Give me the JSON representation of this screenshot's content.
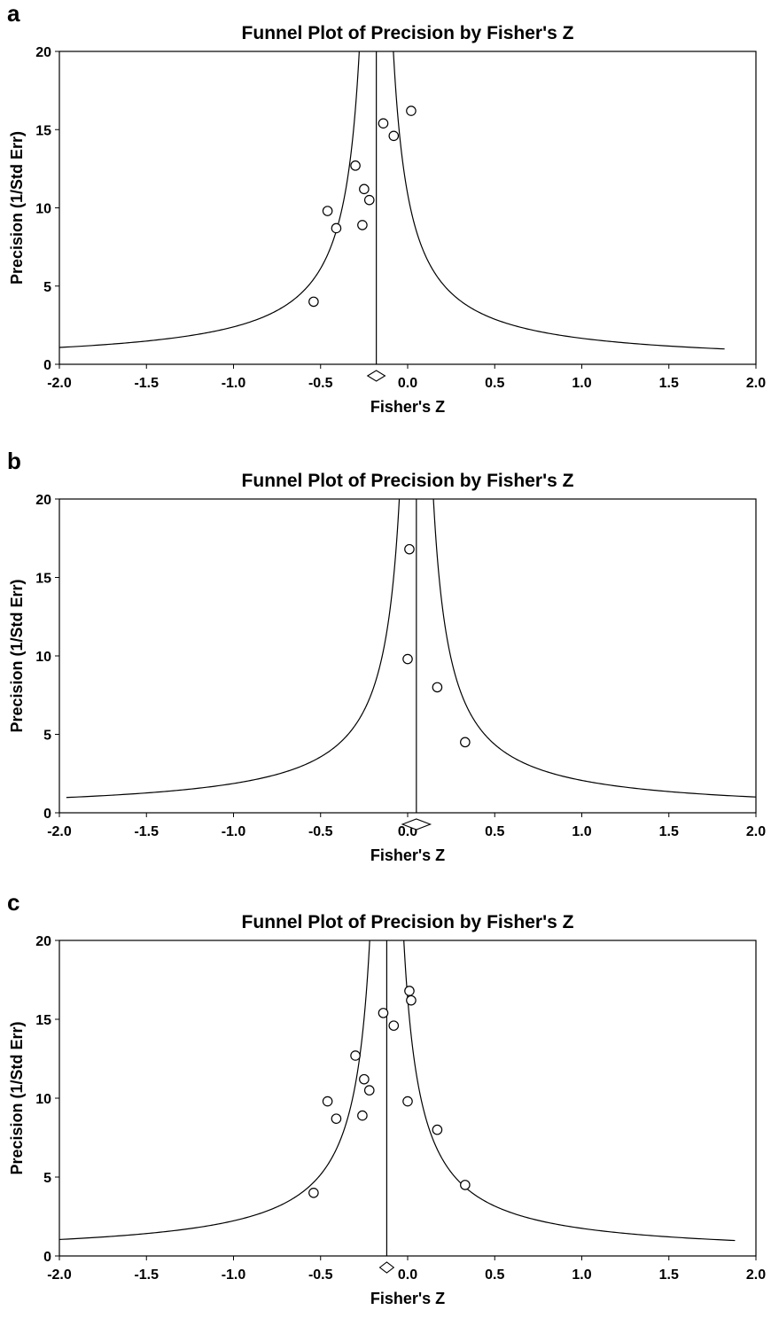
{
  "chart_data": [
    {
      "panel_label": "a",
      "type": "scatter",
      "title": "Funnel Plot of Precision by Fisher's Z",
      "xlabel": "Fisher's Z",
      "ylabel": "Precision (1/Std Err)",
      "xlim": [
        -2.0,
        2.0
      ],
      "ylim": [
        0,
        20
      ],
      "xticks": [
        "-2.0",
        "-1.5",
        "-1.0",
        "-0.5",
        "0.0",
        "0.5",
        "1.0",
        "1.5",
        "2.0"
      ],
      "yticks": [
        "0",
        "5",
        "10",
        "15",
        "20"
      ],
      "center": -0.18,
      "funnel_x_range": [
        -2.0,
        1.82
      ],
      "diamond": {
        "center": -0.18,
        "half_width": 0.05
      },
      "points": [
        {
          "x": -0.54,
          "y": 4.0
        },
        {
          "x": -0.46,
          "y": 9.8
        },
        {
          "x": -0.41,
          "y": 8.7
        },
        {
          "x": -0.3,
          "y": 12.7
        },
        {
          "x": -0.26,
          "y": 8.9
        },
        {
          "x": -0.25,
          "y": 11.2
        },
        {
          "x": -0.22,
          "y": 10.5
        },
        {
          "x": -0.14,
          "y": 15.4
        },
        {
          "x": -0.08,
          "y": 14.6
        },
        {
          "x": 0.02,
          "y": 16.2
        }
      ]
    },
    {
      "panel_label": "b",
      "type": "scatter",
      "title": "Funnel Plot of Precision by Fisher's Z",
      "xlabel": "Fisher's Z",
      "ylabel": "Precision (1/Std Err)",
      "xlim": [
        -2.0,
        2.0
      ],
      "ylim": [
        0,
        20
      ],
      "xticks": [
        "-2.0",
        "-1.5",
        "-1.0",
        "-0.5",
        "0.0",
        "0.5",
        "1.0",
        "1.5",
        "2.0"
      ],
      "yticks": [
        "0",
        "5",
        "10",
        "15",
        "20"
      ],
      "center": 0.05,
      "funnel_x_range": [
        -1.96,
        2.0
      ],
      "diamond": {
        "center": 0.05,
        "half_width": 0.08
      },
      "points": [
        {
          "x": 0.0,
          "y": 9.8
        },
        {
          "x": 0.01,
          "y": 16.8
        },
        {
          "x": 0.17,
          "y": 8.0
        },
        {
          "x": 0.33,
          "y": 4.5
        }
      ]
    },
    {
      "panel_label": "c",
      "type": "scatter",
      "title": "Funnel Plot of Precision by Fisher's Z",
      "xlabel": "Fisher's Z",
      "ylabel": "Precision (1/Std Err)",
      "xlim": [
        -2.0,
        2.0
      ],
      "ylim": [
        0,
        20
      ],
      "xticks": [
        "-2.0",
        "-1.5",
        "-1.0",
        "-0.5",
        "0.0",
        "0.5",
        "1.0",
        "1.5",
        "2.0"
      ],
      "yticks": [
        "0",
        "5",
        "10",
        "15",
        "20"
      ],
      "center": -0.12,
      "funnel_x_range": [
        -2.0,
        1.88
      ],
      "diamond": {
        "center": -0.12,
        "half_width": 0.04
      },
      "points": [
        {
          "x": -0.54,
          "y": 4.0
        },
        {
          "x": -0.46,
          "y": 9.8
        },
        {
          "x": -0.41,
          "y": 8.7
        },
        {
          "x": -0.3,
          "y": 12.7
        },
        {
          "x": -0.26,
          "y": 8.9
        },
        {
          "x": -0.25,
          "y": 11.2
        },
        {
          "x": -0.22,
          "y": 10.5
        },
        {
          "x": -0.14,
          "y": 15.4
        },
        {
          "x": -0.08,
          "y": 14.6
        },
        {
          "x": 0.0,
          "y": 9.8
        },
        {
          "x": 0.01,
          "y": 16.8
        },
        {
          "x": 0.02,
          "y": 16.2
        },
        {
          "x": 0.17,
          "y": 8.0
        },
        {
          "x": 0.33,
          "y": 4.5
        }
      ]
    }
  ]
}
